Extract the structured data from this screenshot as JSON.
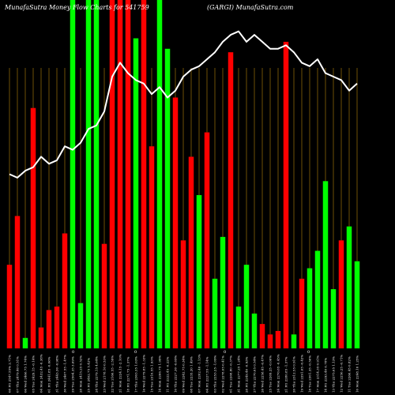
{
  "header": {
    "left": "MunafaSutra  Money Flow  Charts for 541759",
    "center": "(GARGI) MunafaSutra.com"
  },
  "zero_labels": [
    "0",
    "0",
    "0",
    "0"
  ],
  "chart_data": {
    "type": "bar",
    "colors": {
      "up": "#00ff00",
      "down": "#ff0000",
      "line": "#ffffff",
      "grid": "#b8860b",
      "bg": "#000000"
    },
    "categories": [
      "08 Fri 2547.55% 2.71%",
      "07 Thu 2479.40 0.51%",
      "06 Wed 2466.75 1.74%",
      "05 Tue 2429.15 -0.14%",
      "04 Mon 2432.45 -0.38%",
      "01 Fri 2441.85 -0.06%",
      "31 Thu 2443.30 -0.98%",
      "30 Wed 2467.55 -1.47%",
      "29 Tue 2504.35 3.69%",
      "28 Mon 2415.25 0.52%",
      "25 Fri 2402.75 5.42%",
      "24 Thu 2279.15 4.64%",
      "23 Wed 2178.10 0.53%",
      "22 Tue 2166.55 -2.59%",
      "21 Mon 2224.15 -2.10%",
      "18 Fri 2271.75 -1.37%",
      "17 Thu 2303.35 1.03%",
      "16 Wed 2279.85 -1.33%",
      "15 Tue 2310.55 1.93%",
      "14 Mon 2266.75 1.99%",
      "11 Fri 2222.45 -0.22%",
      "10 Thu 2227.30 -0.69%",
      "09 Wed 2242.75 0.34%",
      "08 Tue 2235.20 1.49%",
      "07 Mon 2202.40 -1.13%",
      "04 Fri 2227.55 -1.14%",
      "03 Thu 2253.25 -1.09%",
      "02 Wed 2278.05 0.41%",
      "01 Tue 2268.80 -0.37%",
      "31 Mon 2277.25 1.24%",
      "28 Fri 2249.40 -0.93%",
      "27 Thu 2270.65 0.54%",
      "26 Wed 2258.45 -0.47%",
      "25 Tue 2269.25 -0.06%",
      "24 Mon 2270.65 -0.45%",
      "21 Fri 2280.85 -1.37%",
      "20 Thu 2312.55 0.91%",
      "19 Wed 2291.65 -0.42%",
      "18 Tue 2301.35 -0.56%",
      "17 Mon 2314.35 0.91%",
      "14 Fri 2293.40 0.78%",
      "13 Thu 2275.65 1.13%",
      "12 Wed 2250.25 -0.71%",
      "11 Tue 2266.45 0.82%",
      "10 Mon 2248.10 1.25%"
    ],
    "values": [
      24,
      38,
      3,
      69,
      6,
      11,
      12,
      33,
      100,
      13,
      100,
      100,
      30,
      100,
      100,
      100,
      89,
      100,
      58,
      100,
      86,
      72,
      31,
      55,
      44,
      62,
      20,
      32,
      85,
      12,
      24,
      10,
      7,
      4,
      5,
      88,
      4,
      20,
      23,
      28,
      48,
      17,
      31,
      35,
      25
    ],
    "direction": [
      "down",
      "down",
      "up",
      "down",
      "down",
      "down",
      "down",
      "down",
      "up",
      "up",
      "up",
      "up",
      "down",
      "down",
      "down",
      "down",
      "up",
      "down",
      "down",
      "up",
      "up",
      "down",
      "down",
      "down",
      "up",
      "down",
      "up",
      "up",
      "down",
      "up",
      "up",
      "up",
      "down",
      "down",
      "down",
      "down",
      "up",
      "down",
      "up",
      "up",
      "up",
      "up",
      "down",
      "up",
      "up"
    ],
    "line": [
      50,
      49,
      51,
      52,
      55,
      53,
      54,
      58,
      57,
      59,
      63,
      64,
      68,
      78,
      82,
      79,
      77,
      76,
      73,
      75,
      72,
      74,
      78,
      80,
      81,
      83,
      85,
      88,
      90,
      91,
      88,
      90,
      88,
      86,
      86,
      87,
      85,
      82,
      81,
      83,
      79,
      78,
      77,
      74,
      76
    ],
    "xlabel": "",
    "ylabel": "",
    "ylim": [
      0,
      100
    ],
    "grid": true
  }
}
